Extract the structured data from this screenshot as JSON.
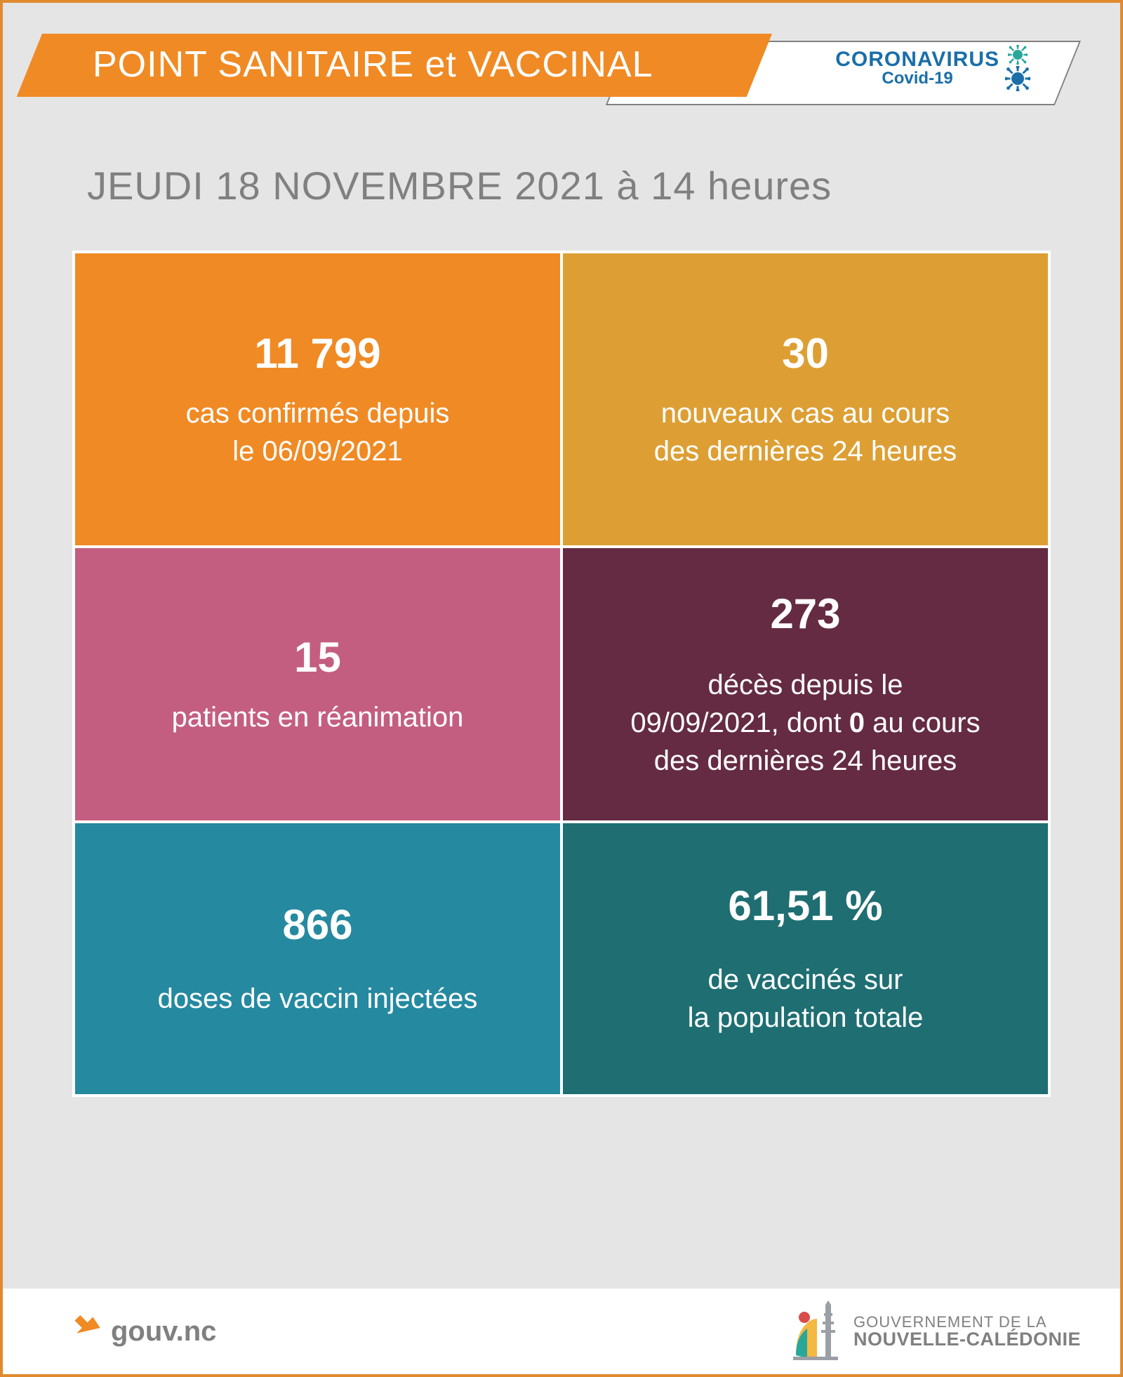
{
  "colors": {
    "frame_border": "#e08a2f",
    "page_bg": "#e5e5e5",
    "banner_orange": "#f08a24",
    "banner_white_border": "#808080",
    "text_gray": "#808080",
    "corona_blue": "#1a6fa8",
    "virus_teal": "#2aa79b",
    "cell_border": "#ffffff"
  },
  "header": {
    "title": "POINT SANITAIRE et VACCINAL",
    "logo_line1": "CORONAVIRUS",
    "logo_line2": "Covid-19"
  },
  "date_line": "JEUDI 18 NOVEMBRE 2021 à 14 heures",
  "stats": [
    {
      "id": "confirmed",
      "value": "11 799",
      "desc_html": "cas confirmés depuis<br>le 06/09/2021",
      "bg": "#f08a24"
    },
    {
      "id": "new-cases",
      "value": "30",
      "desc_html": "nouveaux cas au cours<br>des dernières 24 heures",
      "bg": "#dd9f34"
    },
    {
      "id": "icu",
      "value": "15",
      "desc_html": "patients en réanimation",
      "bg": "#c45e80"
    },
    {
      "id": "deaths",
      "value": "273",
      "desc_html": "décès depuis le<br>09/09/2021, dont <b>0</b> au cours<br>des dernières 24 heures",
      "bg": "#652b42"
    },
    {
      "id": "doses",
      "value": "866",
      "desc_html": "doses de vaccin injectées",
      "bg": "#2589a0"
    },
    {
      "id": "vacc-pct",
      "value": "61,51 %",
      "desc_html": "de vaccinés sur<br>la population totale",
      "bg": "#1e6e72"
    }
  ],
  "footer": {
    "site_label": "gouv.nc",
    "gov_line1": "GOUVERNEMENT DE LA",
    "gov_line2": "NOUVELLE-CALÉDONIE"
  }
}
